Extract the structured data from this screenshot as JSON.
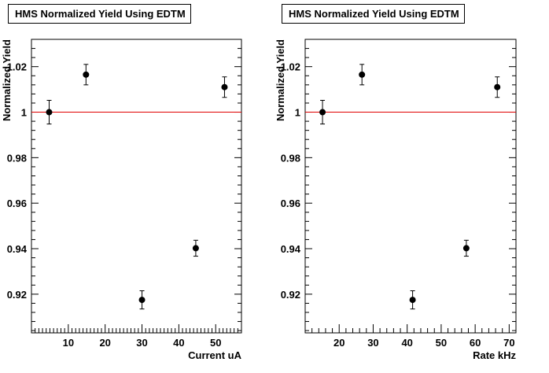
{
  "chart_data": [
    {
      "type": "scatter",
      "title": "HMS Normalized Yield Using EDTM",
      "xlabel": "Current uA",
      "ylabel": "Normalized Yield",
      "xlim": [
        0,
        57
      ],
      "ylim": [
        0.903,
        1.032
      ],
      "xticks": [
        10,
        20,
        30,
        40,
        50
      ],
      "yticks": [
        0.92,
        0.94,
        0.96,
        0.98,
        1,
        1.02
      ],
      "ytick_labels": [
        "0.92",
        "0.94",
        "0.96",
        "0.98",
        "1",
        "1.02"
      ],
      "reference_line": {
        "y": 1,
        "color": "#e00000"
      },
      "points": [
        {
          "x": 4.8,
          "y": 1.0,
          "err": 0.0052
        },
        {
          "x": 14.8,
          "y": 1.0165,
          "err": 0.0045
        },
        {
          "x": 30.0,
          "y": 0.9175,
          "err": 0.004
        },
        {
          "x": 44.6,
          "y": 0.9402,
          "err": 0.0035
        },
        {
          "x": 52.4,
          "y": 1.011,
          "err": 0.0045
        }
      ]
    },
    {
      "type": "scatter",
      "title": "HMS Normalized Yield Using EDTM",
      "xlabel": "Rate kHz",
      "ylabel": "Normalized Yield",
      "xlim": [
        10,
        72
      ],
      "ylim": [
        0.903,
        1.032
      ],
      "xticks": [
        20,
        30,
        40,
        50,
        60,
        70
      ],
      "yticks": [
        0.92,
        0.94,
        0.96,
        0.98,
        1,
        1.02
      ],
      "ytick_labels": [
        "0.92",
        "0.94",
        "0.96",
        "0.98",
        "1",
        "1.02"
      ],
      "reference_line": {
        "y": 1,
        "color": "#e00000"
      },
      "points": [
        {
          "x": 15.1,
          "y": 1.0,
          "err": 0.0052
        },
        {
          "x": 26.7,
          "y": 1.0165,
          "err": 0.0045
        },
        {
          "x": 41.6,
          "y": 0.9175,
          "err": 0.004
        },
        {
          "x": 57.4,
          "y": 0.9402,
          "err": 0.0035
        },
        {
          "x": 66.5,
          "y": 1.011,
          "err": 0.0045
        }
      ]
    }
  ]
}
